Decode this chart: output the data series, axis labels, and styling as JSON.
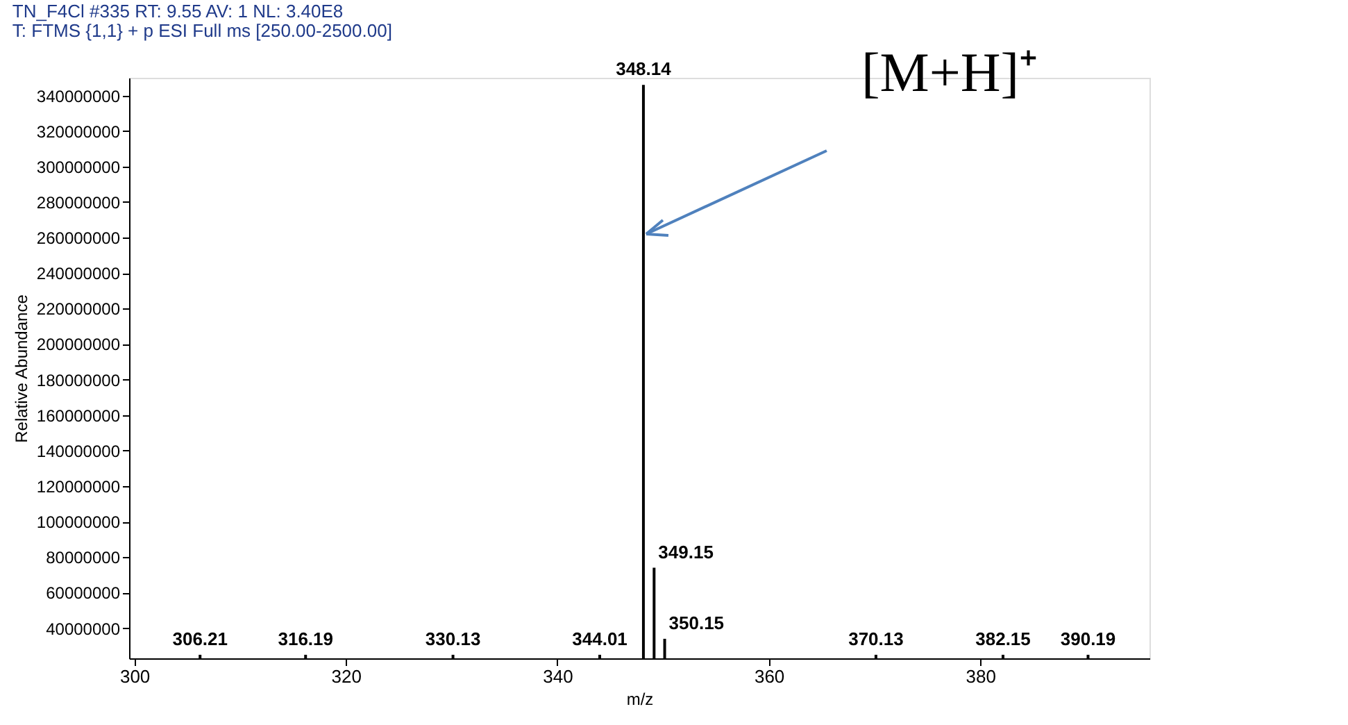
{
  "chart_data": {
    "type": "bar",
    "title": "TN_F4Cl #335   RT: 9.55   AV: 1   NL: 3.40E8",
    "subtitle": "T: FTMS {1,1}  + p ESI Full ms [250.00-2500.00]",
    "xlabel": "m/z",
    "ylabel": "Relative Abundance",
    "x": [
      306.21,
      316.19,
      330.13,
      344.01,
      348.14,
      349.15,
      350.15,
      370.13,
      382.15,
      390.19
    ],
    "values": [
      25000000,
      25000000,
      25000000,
      25000000,
      346000000,
      74000000,
      34000000,
      25000000,
      25000000,
      25000000
    ],
    "color": "#000000",
    "xlim": [
      299.5,
      396
    ],
    "xticks": [
      300,
      320,
      340,
      360,
      380
    ],
    "ylim": [
      23000000,
      350000000
    ],
    "yticks": [
      40000000,
      60000000,
      80000000,
      100000000,
      120000000,
      140000000,
      160000000,
      180000000,
      200000000,
      220000000,
      240000000,
      260000000,
      280000000,
      300000000,
      320000000,
      340000000
    ],
    "grid": false,
    "annotations": [
      {
        "text": "[M+H]⁺",
        "x": 348.14,
        "y": 262000000
      },
      {
        "text": "306.21",
        "x": 306.21,
        "y": 25000000
      },
      {
        "text": "316.19",
        "x": 316.19,
        "y": 25000000
      },
      {
        "text": "330.13",
        "x": 330.13,
        "y": 25000000
      },
      {
        "text": "344.01",
        "x": 344.01,
        "y": 25000000
      },
      {
        "text": "348.14",
        "x": 348.14,
        "y": 346000000
      },
      {
        "text": "349.15",
        "x": 349.15,
        "y": 74000000
      },
      {
        "text": "350.15",
        "x": 350.15,
        "y": 34000000
      },
      {
        "text": "370.13",
        "x": 370.13,
        "y": 25000000
      },
      {
        "text": "382.15",
        "x": 382.15,
        "y": 25000000
      },
      {
        "text": "390.19",
        "x": 390.19,
        "y": 25000000
      }
    ]
  }
}
